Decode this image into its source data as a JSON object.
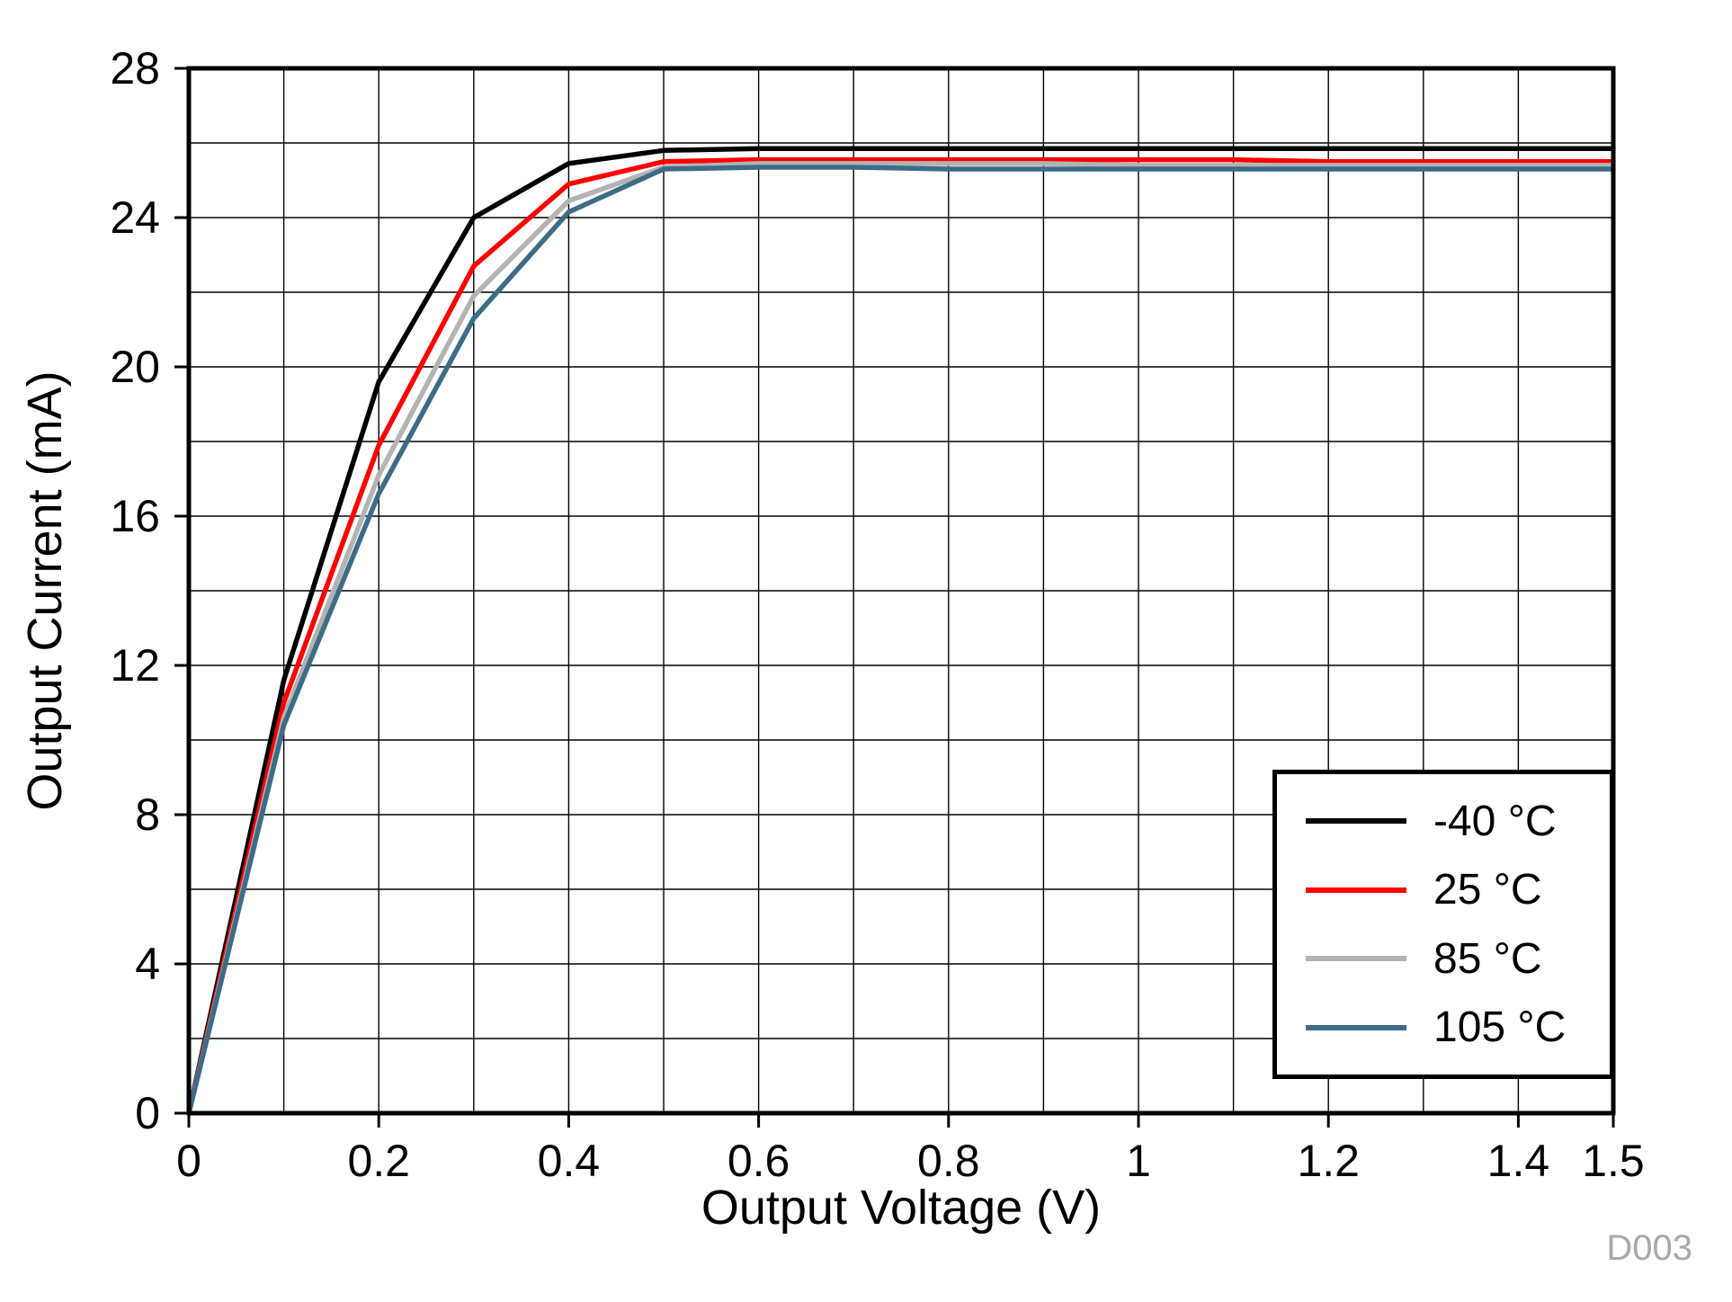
{
  "figure_id": "D003",
  "chart_data": {
    "type": "line",
    "title": "",
    "xlabel": "Output Voltage (V)",
    "ylabel": "Output Current (mA)",
    "xlim": [
      0,
      1.5
    ],
    "ylim": [
      0,
      28
    ],
    "grid": true,
    "x_grid_step": 0.1,
    "y_grid_step": 2,
    "x_major_ticks": [
      0,
      0.2,
      0.4,
      0.6,
      0.8,
      1,
      1.2,
      1.4,
      1.5
    ],
    "x_tick_labels": [
      "0",
      "0.2",
      "0.4",
      "0.6",
      "0.8",
      "1",
      "1.2",
      "1.4",
      "1.5"
    ],
    "y_major_ticks": [
      0,
      4,
      8,
      12,
      16,
      20,
      24,
      28
    ],
    "y_tick_labels": [
      "0",
      "4",
      "8",
      "12",
      "16",
      "20",
      "24",
      "28"
    ],
    "legend_position": "bottom-right",
    "x": [
      0,
      0.1,
      0.2,
      0.3,
      0.4,
      0.5,
      0.6,
      0.7,
      0.8,
      0.9,
      1.0,
      1.1,
      1.2,
      1.3,
      1.4,
      1.5
    ],
    "series": [
      {
        "name": "-40 °C",
        "color": "#000000",
        "values": [
          0,
          11.6,
          19.6,
          24.0,
          25.45,
          25.8,
          25.85,
          25.85,
          25.85,
          25.85,
          25.85,
          25.85,
          25.85,
          25.85,
          25.85,
          25.85
        ]
      },
      {
        "name": "25 °C",
        "color": "#ff0000",
        "values": [
          0,
          11.0,
          17.9,
          22.7,
          24.9,
          25.5,
          25.55,
          25.55,
          25.55,
          25.55,
          25.55,
          25.55,
          25.5,
          25.5,
          25.5,
          25.5
        ]
      },
      {
        "name": "85 °C",
        "color": "#b3b3b3",
        "values": [
          0,
          10.6,
          17.1,
          21.9,
          24.45,
          25.35,
          25.45,
          25.45,
          25.45,
          25.45,
          25.4,
          25.4,
          25.4,
          25.4,
          25.4,
          25.4
        ]
      },
      {
        "name": "105 °C",
        "color": "#3d6c87",
        "values": [
          0,
          10.4,
          16.6,
          21.3,
          24.15,
          25.3,
          25.35,
          25.35,
          25.3,
          25.3,
          25.3,
          25.3,
          25.3,
          25.3,
          25.3,
          25.3
        ]
      }
    ]
  }
}
